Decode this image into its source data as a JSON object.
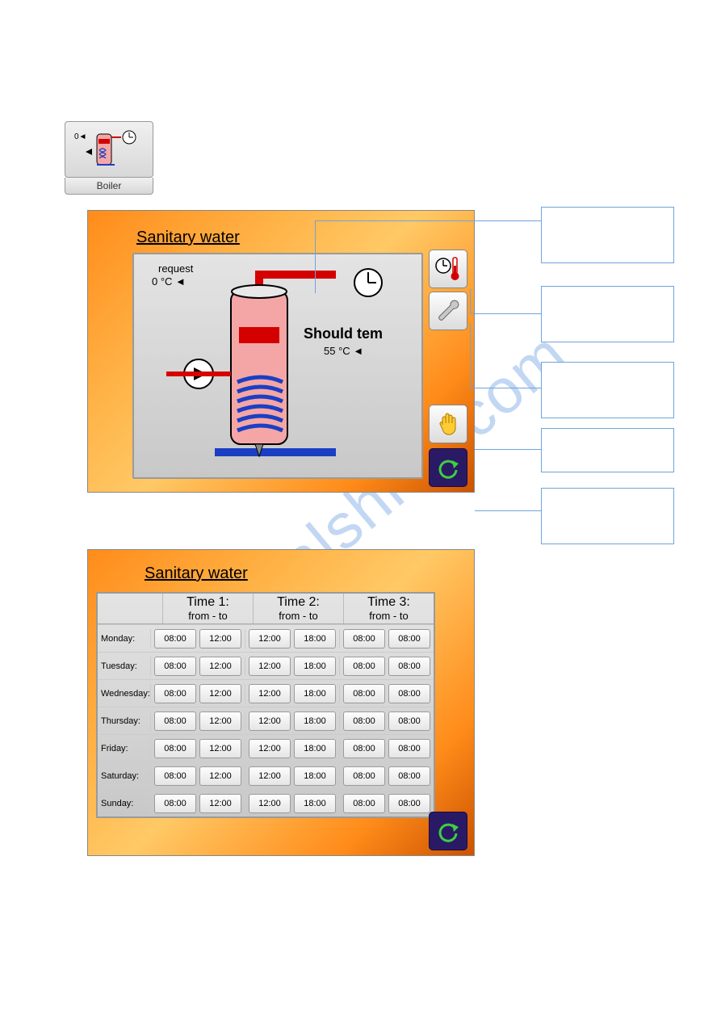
{
  "boiler": {
    "label": "Boiler",
    "left_marker": "0◄"
  },
  "panel1": {
    "title": "Sanitary water",
    "request_label": "request",
    "request_value": "0 °C ◄",
    "should_label": "Should tem",
    "should_value": "55 °C ◄"
  },
  "callouts": {
    "c1": "",
    "c2": "",
    "c3": "",
    "c4": "",
    "c5": ""
  },
  "panel2": {
    "title": "Sanitary water",
    "headers": {
      "t1": "Time 1:",
      "t2": "Time 2:",
      "t3": "Time 3:",
      "sub": "from - to"
    },
    "days": [
      "Monday:",
      "Tuesday:",
      "Wednesday:",
      "Thursday:",
      "Friday:",
      "Saturday:",
      "Sunday:"
    ],
    "values": [
      [
        "08:00",
        "12:00",
        "12:00",
        "18:00",
        "08:00",
        "08:00"
      ],
      [
        "08:00",
        "12:00",
        "12:00",
        "18:00",
        "08:00",
        "08:00"
      ],
      [
        "08:00",
        "12:00",
        "12:00",
        "18:00",
        "08:00",
        "08:00"
      ],
      [
        "08:00",
        "12:00",
        "12:00",
        "18:00",
        "08:00",
        "08:00"
      ],
      [
        "08:00",
        "12:00",
        "12:00",
        "18:00",
        "08:00",
        "08:00"
      ],
      [
        "08:00",
        "12:00",
        "12:00",
        "18:00",
        "08:00",
        "08:00"
      ],
      [
        "08:00",
        "12:00",
        "12:00",
        "18:00",
        "08:00",
        "08:00"
      ]
    ]
  },
  "colors": {
    "hot": "#d40000",
    "cold": "#1a3fc4",
    "tank_fill_top": "#f4a6a6",
    "tank_fill_mid": "#e23b3b",
    "accent_orange": "#ff8c1a",
    "callout_border": "#6fa4dc",
    "btn_dark": "#2a1a66"
  }
}
